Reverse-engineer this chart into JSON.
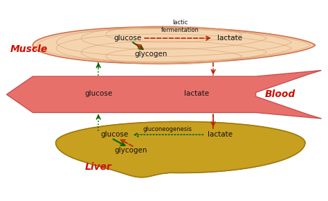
{
  "bg_color": "#ffffff",
  "muscle_color": "#f5d5b0",
  "muscle_outline": "#d07050",
  "muscle_fiber_color": "#d8a070",
  "blood_color": "#e8706a",
  "blood_outline": "#c85050",
  "liver_color": "#c8a020",
  "liver_outline": "#a07810",
  "label_color": "#cc1100",
  "green_arrow": "#006600",
  "red_arrow": "#bb2200",
  "text_color": "#111111",
  "figsize": [
    4.74,
    2.9
  ],
  "dpi": 100,
  "muscle_label": "Muscle",
  "blood_label": "Blood",
  "liver_label": "Liver"
}
